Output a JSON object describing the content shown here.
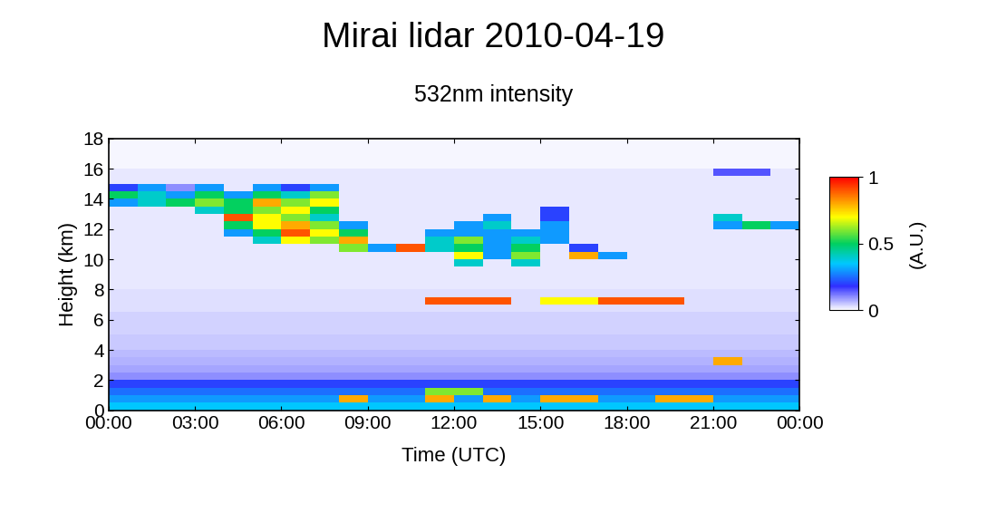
{
  "chart_data": {
    "type": "heatmap",
    "title": "Mirai lidar 2010-04-19",
    "subtitle": "532nm intensity",
    "x_label": "Time (UTC)",
    "y_label": "Height (km)",
    "colorbar_label": "(A.U.)",
    "x": [
      0,
      1,
      2,
      3,
      4,
      5,
      6,
      7,
      8,
      9,
      10,
      11,
      12,
      13,
      14,
      15,
      16,
      17,
      18,
      19,
      20,
      21,
      22,
      23,
      24
    ],
    "y": [
      0,
      0.5,
      1,
      1.5,
      2,
      2.5,
      3,
      3.5,
      4,
      4.5,
      5,
      5.5,
      6,
      6.5,
      7,
      7.5,
      8,
      8.5,
      9,
      9.5,
      10,
      10.5,
      11,
      11.5,
      12,
      12.5,
      13,
      13.5,
      14,
      14.5,
      15,
      15.5,
      16,
      16.5,
      17,
      17.5,
      18
    ],
    "xlim": [
      0,
      24
    ],
    "ylim": [
      0,
      18
    ],
    "xticks": [
      {
        "value": 0,
        "label": "00:00"
      },
      {
        "value": 3,
        "label": "03:00"
      },
      {
        "value": 6,
        "label": "06:00"
      },
      {
        "value": 9,
        "label": "09:00"
      },
      {
        "value": 12,
        "label": "12:00"
      },
      {
        "value": 15,
        "label": "15:00"
      },
      {
        "value": 18,
        "label": "18:00"
      },
      {
        "value": 21,
        "label": "21:00"
      },
      {
        "value": 24,
        "label": "00:00"
      }
    ],
    "yticks": [
      0,
      2,
      4,
      6,
      8,
      10,
      12,
      14,
      16,
      18
    ],
    "clim": [
      0,
      1
    ],
    "cticks": [
      0,
      0.5,
      1
    ],
    "cells": [
      [
        0.35,
        0.35,
        0.35,
        0.35,
        0.35,
        0.35,
        0.35,
        0.35,
        0.35,
        0.35,
        0.35,
        0.35,
        0.35,
        0.35,
        0.35,
        0.35,
        0.35,
        0.35,
        0.35,
        0.35,
        0.35,
        0.35,
        0.35,
        0.35
      ],
      [
        0.3,
        0.3,
        0.3,
        0.3,
        0.3,
        0.3,
        0.3,
        0.3,
        0.8,
        0.3,
        0.3,
        0.8,
        0.3,
        0.8,
        0.3,
        0.8,
        0.8,
        0.3,
        0.3,
        0.8,
        0.8,
        0.3,
        0.3,
        0.3
      ],
      [
        0.25,
        0.25,
        0.25,
        0.25,
        0.25,
        0.25,
        0.25,
        0.25,
        0.25,
        0.25,
        0.25,
        0.6,
        0.6,
        0.25,
        0.25,
        0.25,
        0.25,
        0.25,
        0.25,
        0.25,
        0.25,
        0.25,
        0.25,
        0.25
      ],
      [
        0.2,
        0.2,
        0.2,
        0.2,
        0.2,
        0.2,
        0.2,
        0.2,
        0.2,
        0.2,
        0.2,
        0.2,
        0.2,
        0.2,
        0.2,
        0.2,
        0.2,
        0.2,
        0.2,
        0.2,
        0.2,
        0.2,
        0.2,
        0.2
      ],
      [
        0.1,
        0.1,
        0.1,
        0.1,
        0.1,
        0.1,
        0.1,
        0.1,
        0.1,
        0.1,
        0.1,
        0.1,
        0.1,
        0.1,
        0.1,
        0.1,
        0.1,
        0.1,
        0.1,
        0.1,
        0.1,
        0.1,
        0.1,
        0.1
      ],
      [
        0.08,
        0.08,
        0.08,
        0.08,
        0.08,
        0.08,
        0.08,
        0.08,
        0.08,
        0.08,
        0.08,
        0.08,
        0.08,
        0.08,
        0.08,
        0.08,
        0.08,
        0.08,
        0.08,
        0.08,
        0.08,
        0.08,
        0.08,
        0.08
      ],
      [
        0.07,
        0.07,
        0.07,
        0.07,
        0.07,
        0.07,
        0.07,
        0.07,
        0.07,
        0.07,
        0.07,
        0.07,
        0.07,
        0.07,
        0.07,
        0.07,
        0.07,
        0.07,
        0.07,
        0.07,
        0.07,
        0.8,
        0.07,
        0.07
      ],
      [
        0.06,
        0.06,
        0.06,
        0.06,
        0.06,
        0.06,
        0.06,
        0.06,
        0.06,
        0.06,
        0.06,
        0.06,
        0.06,
        0.06,
        0.06,
        0.06,
        0.06,
        0.06,
        0.06,
        0.06,
        0.06,
        0.06,
        0.06,
        0.06
      ],
      [
        0.05,
        0.05,
        0.05,
        0.05,
        0.05,
        0.05,
        0.05,
        0.05,
        0.05,
        0.05,
        0.05,
        0.05,
        0.05,
        0.05,
        0.05,
        0.05,
        0.05,
        0.05,
        0.05,
        0.05,
        0.05,
        0.05,
        0.05,
        0.05
      ],
      [
        0.05,
        0.05,
        0.05,
        0.05,
        0.05,
        0.05,
        0.05,
        0.05,
        0.05,
        0.05,
        0.05,
        0.05,
        0.05,
        0.05,
        0.05,
        0.05,
        0.05,
        0.05,
        0.05,
        0.05,
        0.05,
        0.05,
        0.05,
        0.05
      ],
      [
        0.04,
        0.04,
        0.04,
        0.04,
        0.04,
        0.04,
        0.04,
        0.04,
        0.04,
        0.04,
        0.04,
        0.04,
        0.04,
        0.04,
        0.04,
        0.04,
        0.04,
        0.04,
        0.04,
        0.04,
        0.04,
        0.04,
        0.04,
        0.04
      ],
      [
        0.04,
        0.04,
        0.04,
        0.04,
        0.04,
        0.04,
        0.04,
        0.04,
        0.04,
        0.04,
        0.04,
        0.04,
        0.04,
        0.04,
        0.04,
        0.04,
        0.04,
        0.04,
        0.04,
        0.04,
        0.04,
        0.04,
        0.04,
        0.04
      ],
      [
        0.04,
        0.04,
        0.04,
        0.04,
        0.04,
        0.04,
        0.04,
        0.04,
        0.04,
        0.04,
        0.04,
        0.04,
        0.04,
        0.04,
        0.04,
        0.04,
        0.04,
        0.04,
        0.04,
        0.04,
        0.04,
        0.04,
        0.04,
        0.04
      ],
      [
        0.03,
        0.03,
        0.03,
        0.03,
        0.03,
        0.03,
        0.03,
        0.03,
        0.03,
        0.03,
        0.03,
        0.03,
        0.03,
        0.03,
        0.03,
        0.03,
        0.03,
        0.03,
        0.03,
        0.03,
        0.03,
        0.03,
        0.03,
        0.03
      ],
      [
        0.03,
        0.03,
        0.03,
        0.03,
        0.03,
        0.03,
        0.03,
        0.03,
        0.03,
        0.03,
        0.03,
        0.9,
        0.9,
        0.9,
        0.03,
        0.7,
        0.7,
        0.9,
        0.9,
        0.9,
        0.03,
        0.03,
        0.03,
        0.03
      ],
      [
        0.03,
        0.03,
        0.03,
        0.03,
        0.03,
        0.03,
        0.03,
        0.03,
        0.03,
        0.03,
        0.03,
        0.03,
        0.03,
        0.03,
        0.03,
        0.03,
        0.03,
        0.03,
        0.03,
        0.03,
        0.03,
        0.03,
        0.03,
        0.03
      ],
      [
        0.02,
        0.02,
        0.02,
        0.02,
        0.02,
        0.02,
        0.02,
        0.02,
        0.02,
        0.02,
        0.02,
        0.02,
        0.02,
        0.02,
        0.02,
        0.02,
        0.02,
        0.02,
        0.02,
        0.02,
        0.02,
        0.02,
        0.02,
        0.02
      ],
      [
        0.02,
        0.02,
        0.02,
        0.02,
        0.02,
        0.02,
        0.02,
        0.02,
        0.02,
        0.02,
        0.02,
        0.02,
        0.02,
        0.02,
        0.02,
        0.02,
        0.02,
        0.02,
        0.02,
        0.02,
        0.02,
        0.02,
        0.02,
        0.02
      ],
      [
        0.02,
        0.02,
        0.02,
        0.02,
        0.02,
        0.02,
        0.02,
        0.02,
        0.02,
        0.02,
        0.02,
        0.02,
        0.02,
        0.02,
        0.02,
        0.02,
        0.02,
        0.02,
        0.02,
        0.02,
        0.02,
        0.02,
        0.02,
        0.02
      ],
      [
        0.02,
        0.02,
        0.02,
        0.02,
        0.02,
        0.02,
        0.02,
        0.02,
        0.02,
        0.02,
        0.02,
        0.02,
        0.4,
        0.02,
        0.4,
        0.02,
        0.02,
        0.02,
        0.02,
        0.02,
        0.02,
        0.02,
        0.02,
        0.02
      ],
      [
        0.02,
        0.02,
        0.02,
        0.02,
        0.02,
        0.02,
        0.02,
        0.02,
        0.02,
        0.02,
        0.02,
        0.02,
        0.7,
        0.3,
        0.6,
        0.02,
        0.8,
        0.3,
        0.02,
        0.02,
        0.02,
        0.02,
        0.02,
        0.02
      ],
      [
        0.02,
        0.02,
        0.02,
        0.02,
        0.02,
        0.02,
        0.02,
        0.02,
        0.6,
        0.3,
        0.9,
        0.4,
        0.5,
        0.3,
        0.5,
        0.02,
        0.2,
        0.02,
        0.02,
        0.02,
        0.02,
        0.02,
        0.02,
        0.02
      ],
      [
        0.02,
        0.02,
        0.02,
        0.02,
        0.02,
        0.4,
        0.7,
        0.6,
        0.8,
        0.02,
        0.02,
        0.4,
        0.6,
        0.3,
        0.4,
        0.3,
        0.02,
        0.02,
        0.02,
        0.02,
        0.02,
        0.02,
        0.02,
        0.02
      ],
      [
        0.02,
        0.02,
        0.02,
        0.02,
        0.3,
        0.5,
        0.9,
        0.7,
        0.5,
        0.02,
        0.02,
        0.3,
        0.3,
        0.3,
        0.3,
        0.3,
        0.02,
        0.02,
        0.02,
        0.02,
        0.02,
        0.02,
        0.02,
        0.02
      ],
      [
        0.02,
        0.02,
        0.02,
        0.02,
        0.5,
        0.7,
        0.8,
        0.6,
        0.3,
        0.02,
        0.02,
        0.02,
        0.3,
        0.4,
        0.02,
        0.3,
        0.02,
        0.02,
        0.02,
        0.02,
        0.02,
        0.3,
        0.5,
        0.3
      ],
      [
        0.02,
        0.02,
        0.02,
        0.02,
        0.9,
        0.7,
        0.6,
        0.4,
        0.02,
        0.02,
        0.02,
        0.02,
        0.02,
        0.3,
        0.02,
        0.2,
        0.02,
        0.02,
        0.02,
        0.02,
        0.02,
        0.4,
        0.02,
        0.02
      ],
      [
        0.02,
        0.02,
        0.02,
        0.4,
        0.5,
        0.6,
        0.7,
        0.5,
        0.02,
        0.02,
        0.02,
        0.02,
        0.02,
        0.02,
        0.02,
        0.2,
        0.02,
        0.02,
        0.02,
        0.02,
        0.02,
        0.02,
        0.02,
        0.02
      ],
      [
        0.3,
        0.4,
        0.5,
        0.6,
        0.5,
        0.8,
        0.6,
        0.7,
        0.02,
        0.02,
        0.02,
        0.02,
        0.02,
        0.02,
        0.02,
        0.02,
        0.02,
        0.02,
        0.02,
        0.02,
        0.02,
        0.02,
        0.02,
        0.02
      ],
      [
        0.5,
        0.4,
        0.3,
        0.5,
        0.3,
        0.5,
        0.4,
        0.6,
        0.02,
        0.02,
        0.02,
        0.02,
        0.02,
        0.02,
        0.02,
        0.02,
        0.02,
        0.02,
        0.02,
        0.02,
        0.02,
        0.02,
        0.02,
        0.02
      ],
      [
        0.2,
        0.3,
        0.1,
        0.3,
        0.02,
        0.3,
        0.2,
        0.3,
        0.02,
        0.02,
        0.02,
        0.02,
        0.02,
        0.02,
        0.02,
        0.02,
        0.02,
        0.02,
        0.02,
        0.02,
        0.02,
        0.02,
        0.02,
        0.02
      ],
      [
        0.02,
        0.02,
        0.02,
        0.02,
        0.02,
        0.02,
        0.02,
        0.02,
        0.02,
        0.02,
        0.02,
        0.02,
        0.02,
        0.02,
        0.02,
        0.02,
        0.02,
        0.02,
        0.02,
        0.02,
        0.02,
        0.02,
        0.02,
        0.02
      ],
      [
        0.02,
        0.02,
        0.02,
        0.02,
        0.02,
        0.02,
        0.02,
        0.02,
        0.02,
        0.02,
        0.02,
        0.02,
        0.02,
        0.02,
        0.02,
        0.02,
        0.02,
        0.02,
        0.02,
        0.02,
        0.02,
        0.15,
        0.15,
        0.02
      ],
      [
        0.01,
        0.01,
        0.01,
        0.01,
        0.01,
        0.01,
        0.01,
        0.01,
        0.01,
        0.01,
        0.01,
        0.01,
        0.01,
        0.01,
        0.01,
        0.01,
        0.01,
        0.01,
        0.01,
        0.01,
        0.01,
        0.01,
        0.01,
        0.01
      ],
      [
        0.01,
        0.01,
        0.01,
        0.01,
        0.01,
        0.01,
        0.01,
        0.01,
        0.01,
        0.01,
        0.01,
        0.01,
        0.01,
        0.01,
        0.01,
        0.01,
        0.01,
        0.01,
        0.01,
        0.01,
        0.01,
        0.01,
        0.01,
        0.01
      ],
      [
        0.01,
        0.01,
        0.01,
        0.01,
        0.01,
        0.01,
        0.01,
        0.01,
        0.01,
        0.01,
        0.01,
        0.01,
        0.01,
        0.01,
        0.01,
        0.01,
        0.01,
        0.01,
        0.01,
        0.01,
        0.01,
        0.01,
        0.01,
        0.01
      ],
      [
        0.01,
        0.01,
        0.01,
        0.01,
        0.01,
        0.01,
        0.01,
        0.01,
        0.01,
        0.01,
        0.01,
        0.01,
        0.01,
        0.01,
        0.01,
        0.01,
        0.01,
        0.01,
        0.01,
        0.01,
        0.01,
        0.01,
        0.01,
        0.01
      ]
    ]
  }
}
